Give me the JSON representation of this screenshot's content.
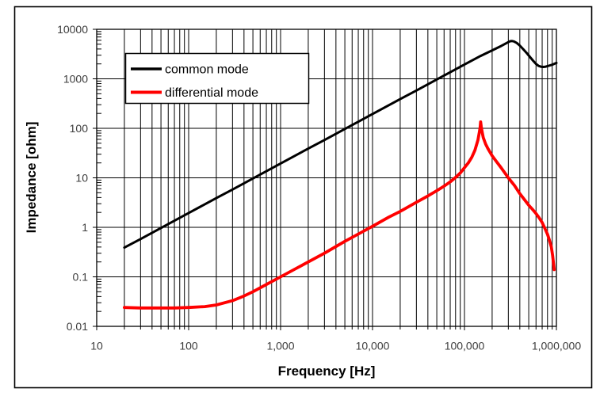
{
  "chart_data": {
    "type": "line",
    "title": "",
    "xlabel": "Frequency [Hz]",
    "ylabel": "Impedance [ohm]",
    "x_scale": "log",
    "y_scale": "log",
    "xlim": [
      10,
      1000000
    ],
    "ylim": [
      0.01,
      10000
    ],
    "grid": {
      "x_minor_gridlines": true,
      "y_minor_gridlines": false,
      "y_minor_ticks": true
    },
    "x_ticks": [
      {
        "value": 10,
        "label": "10"
      },
      {
        "value": 100,
        "label": "100"
      },
      {
        "value": 1000,
        "label": "1,000"
      },
      {
        "value": 10000,
        "label": "10,000"
      },
      {
        "value": 100000,
        "label": "100,000"
      },
      {
        "value": 1000000,
        "label": "1,000,000"
      }
    ],
    "y_ticks": [
      {
        "value": 10000,
        "label": "10000"
      },
      {
        "value": 1000,
        "label": "1000"
      },
      {
        "value": 100,
        "label": "100"
      },
      {
        "value": 10,
        "label": "10"
      },
      {
        "value": 1,
        "label": "1"
      },
      {
        "value": 0.1,
        "label": "0.1"
      },
      {
        "value": 0.01,
        "label": "0.01"
      }
    ],
    "legend": {
      "position": "top-left-inside"
    },
    "series": [
      {
        "name": "common mode",
        "color": "#000000",
        "line_width": 3,
        "points": [
          [
            20,
            0.39
          ],
          [
            30,
            0.58
          ],
          [
            50,
            0.97
          ],
          [
            70,
            1.36
          ],
          [
            100,
            1.95
          ],
          [
            200,
            3.9
          ],
          [
            300,
            5.8
          ],
          [
            500,
            9.7
          ],
          [
            700,
            13.6
          ],
          [
            1000,
            19.5
          ],
          [
            2000,
            39
          ],
          [
            3000,
            58
          ],
          [
            5000,
            97
          ],
          [
            7000,
            136
          ],
          [
            10000,
            195
          ],
          [
            20000,
            390
          ],
          [
            30000,
            580
          ],
          [
            50000,
            970
          ],
          [
            70000,
            1360
          ],
          [
            100000,
            1950
          ],
          [
            150000,
            2900
          ],
          [
            200000,
            3750
          ],
          [
            250000,
            4600
          ],
          [
            300000,
            5500
          ],
          [
            315000,
            5750
          ],
          [
            330000,
            5800
          ],
          [
            345000,
            5700
          ],
          [
            370000,
            5300
          ],
          [
            400000,
            4700
          ],
          [
            440000,
            3900
          ],
          [
            480000,
            3250
          ],
          [
            520000,
            2700
          ],
          [
            560000,
            2300
          ],
          [
            600000,
            2000
          ],
          [
            640000,
            1820
          ],
          [
            680000,
            1760
          ],
          [
            720000,
            1740
          ],
          [
            760000,
            1760
          ],
          [
            800000,
            1800
          ],
          [
            900000,
            1930
          ],
          [
            1000000,
            2100
          ]
        ]
      },
      {
        "name": "differential mode",
        "color": "#ff0000",
        "line_width": 3.8,
        "points": [
          [
            20,
            0.024
          ],
          [
            30,
            0.0235
          ],
          [
            50,
            0.0235
          ],
          [
            70,
            0.0235
          ],
          [
            100,
            0.024
          ],
          [
            150,
            0.025
          ],
          [
            200,
            0.027
          ],
          [
            300,
            0.033
          ],
          [
            400,
            0.041
          ],
          [
            500,
            0.05
          ],
          [
            700,
            0.07
          ],
          [
            1000,
            0.1
          ],
          [
            1500,
            0.15
          ],
          [
            2000,
            0.2
          ],
          [
            3000,
            0.3
          ],
          [
            5000,
            0.52
          ],
          [
            7000,
            0.73
          ],
          [
            10000,
            1.05
          ],
          [
            15000,
            1.6
          ],
          [
            20000,
            2.1
          ],
          [
            30000,
            3.2
          ],
          [
            40000,
            4.3
          ],
          [
            50000,
            5.5
          ],
          [
            60000,
            6.8
          ],
          [
            70000,
            8.3
          ],
          [
            80000,
            10.2
          ],
          [
            90000,
            12.5
          ],
          [
            100000,
            16
          ],
          [
            110000,
            20
          ],
          [
            120000,
            26
          ],
          [
            130000,
            36
          ],
          [
            140000,
            58
          ],
          [
            145000,
            82
          ],
          [
            148000,
            105
          ],
          [
            150000,
            135
          ],
          [
            152000,
            110
          ],
          [
            155000,
            88
          ],
          [
            160000,
            65
          ],
          [
            170000,
            48
          ],
          [
            180000,
            39
          ],
          [
            200000,
            28
          ],
          [
            220000,
            22
          ],
          [
            250000,
            16
          ],
          [
            280000,
            12
          ],
          [
            300000,
            10
          ],
          [
            350000,
            7
          ],
          [
            400000,
            4.8
          ],
          [
            450000,
            3.6
          ],
          [
            500000,
            2.8
          ],
          [
            550000,
            2.3
          ],
          [
            600000,
            1.9
          ],
          [
            650000,
            1.55
          ],
          [
            700000,
            1.25
          ],
          [
            750000,
            0.95
          ],
          [
            800000,
            0.72
          ],
          [
            840000,
            0.55
          ],
          [
            880000,
            0.4
          ],
          [
            910000,
            0.27
          ],
          [
            930000,
            0.19
          ],
          [
            945000,
            0.14
          ]
        ]
      }
    ]
  }
}
